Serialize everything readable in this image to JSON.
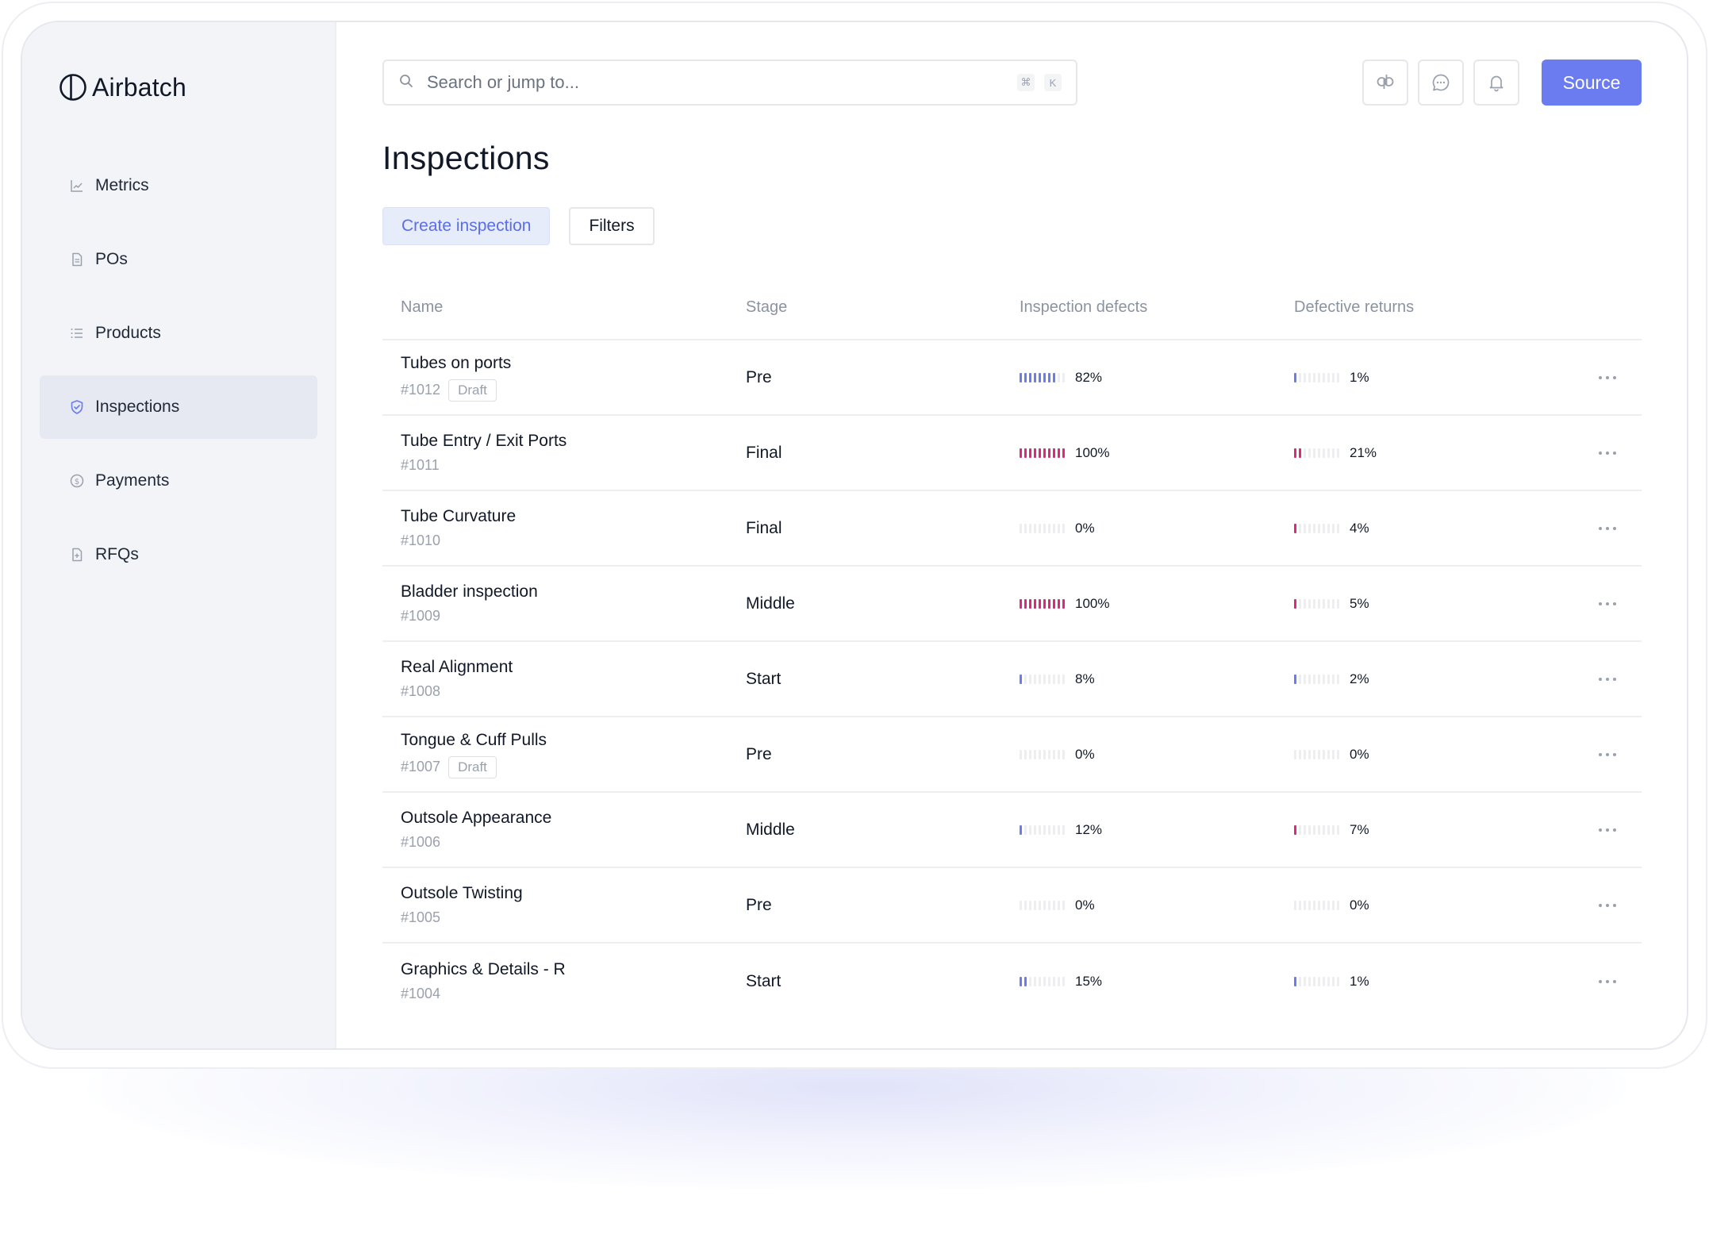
{
  "app": {
    "name": "Airbatch"
  },
  "nav": [
    {
      "label": "Metrics",
      "icon": "chart-line-icon",
      "active": false
    },
    {
      "label": "POs",
      "icon": "document-icon",
      "active": false
    },
    {
      "label": "Products",
      "icon": "list-icon",
      "active": false
    },
    {
      "label": "Inspections",
      "icon": "shield-check-icon",
      "active": true
    },
    {
      "label": "Payments",
      "icon": "dollar-circle-icon",
      "active": false
    },
    {
      "label": "RFQs",
      "icon": "document-plus-icon",
      "active": false
    }
  ],
  "search": {
    "placeholder": "Search or jump to...",
    "shortcut_keys": [
      "⌘",
      "K"
    ]
  },
  "top_actions": {
    "icons": [
      "quickbooks-icon",
      "chat-icon",
      "bell-icon"
    ],
    "primary_label": "Source"
  },
  "page": {
    "title": "Inspections",
    "create_label": "Create inspection",
    "filters_label": "Filters"
  },
  "colors": {
    "accent": "#6b7bf0",
    "defect_bar_blue": "#6b7bf0",
    "defect_bar_pink": "#e0287a",
    "bar_empty": "#eceef3"
  },
  "table": {
    "columns": [
      "Name",
      "Stage",
      "Inspection defects",
      "Defective returns"
    ],
    "rows": [
      {
        "name": "Tubes on ports",
        "id": "#1012",
        "badge": "Draft",
        "stage": "Pre",
        "inspection_defects": "82%",
        "defects_value": 82,
        "defects_color": "blue",
        "defective_returns": "1%",
        "returns_value": 1,
        "returns_color": "blue"
      },
      {
        "name": "Tube Entry / Exit Ports",
        "id": "#1011",
        "badge": "",
        "stage": "Final",
        "inspection_defects": "100%",
        "defects_value": 100,
        "defects_color": "pink",
        "defective_returns": "21%",
        "returns_value": 21,
        "returns_color": "pink"
      },
      {
        "name": "Tube Curvature",
        "id": "#1010",
        "badge": "",
        "stage": "Final",
        "inspection_defects": "0%",
        "defects_value": 0,
        "defects_color": "blue",
        "defective_returns": "4%",
        "returns_value": 4,
        "returns_color": "pink"
      },
      {
        "name": "Bladder inspection",
        "id": "#1009",
        "badge": "",
        "stage": "Middle",
        "inspection_defects": "100%",
        "defects_value": 100,
        "defects_color": "pink",
        "defective_returns": "5%",
        "returns_value": 5,
        "returns_color": "pink"
      },
      {
        "name": "Real Alignment",
        "id": "#1008",
        "badge": "",
        "stage": "Start",
        "inspection_defects": "8%",
        "defects_value": 8,
        "defects_color": "blue",
        "defective_returns": "2%",
        "returns_value": 2,
        "returns_color": "blue"
      },
      {
        "name": "Tongue & Cuff Pulls",
        "id": "#1007",
        "badge": "Draft",
        "stage": "Pre",
        "inspection_defects": "0%",
        "defects_value": 0,
        "defects_color": "blue",
        "defective_returns": "0%",
        "returns_value": 0,
        "returns_color": "blue"
      },
      {
        "name": "Outsole Appearance",
        "id": "#1006",
        "badge": "",
        "stage": "Middle",
        "inspection_defects": "12%",
        "defects_value": 12,
        "defects_color": "blue",
        "defective_returns": "7%",
        "returns_value": 7,
        "returns_color": "pink"
      },
      {
        "name": "Outsole Twisting",
        "id": "#1005",
        "badge": "",
        "stage": "Pre",
        "inspection_defects": "0%",
        "defects_value": 0,
        "defects_color": "blue",
        "defective_returns": "0%",
        "returns_value": 0,
        "returns_color": "blue"
      },
      {
        "name": "Graphics & Details - R",
        "id": "#1004",
        "badge": "",
        "stage": "Start",
        "inspection_defects": "15%",
        "defects_value": 15,
        "defects_color": "blue",
        "defective_returns": "1%",
        "returns_value": 1,
        "returns_color": "blue"
      }
    ]
  }
}
